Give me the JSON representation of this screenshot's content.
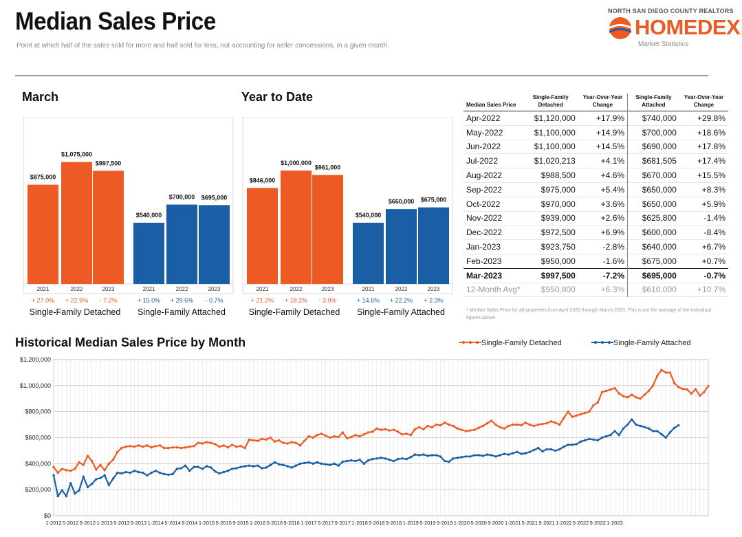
{
  "header": {
    "title": "Median Sales Price",
    "subtitle": "Point at which half of the sales sold for more and half sold for less, not accounting for seller concessions, in a given month.",
    "brand_top": "NORTH SAN DIEGO COUNTY REALTORS",
    "brand_name": "HOMEDEX",
    "brand_sub": "Market Statistics"
  },
  "colors": {
    "detached": "#ee5a24",
    "attached": "#1a5ea6",
    "accent_up": "#ee5a24",
    "accent_pos_attached": "#1a5ea6"
  },
  "chart_data": [
    {
      "type": "bar",
      "title": "March",
      "groups": [
        {
          "name": "Single-Family Detached",
          "categories": [
            "2021",
            "2022",
            "2023"
          ],
          "values": [
            875000,
            1075000,
            997500
          ],
          "labels": [
            "$875,000",
            "$1,075,000",
            "$997,500"
          ],
          "changes": [
            "+ 27.0%",
            "+ 22.9%",
            "- 7.2%"
          ]
        },
        {
          "name": "Single-Family Attached",
          "categories": [
            "2021",
            "2022",
            "2023"
          ],
          "values": [
            540000,
            700000,
            695000
          ],
          "labels": [
            "$540,000",
            "$700,000",
            "$695,000"
          ],
          "changes": [
            "+ 15.0%",
            "+ 29.6%",
            "- 0.7%"
          ]
        }
      ],
      "ylim": [
        0,
        1200000
      ]
    },
    {
      "type": "bar",
      "title": "Year to Date",
      "groups": [
        {
          "name": "Single-Family Detached",
          "categories": [
            "2021",
            "2022",
            "2023"
          ],
          "values": [
            846000,
            1000000,
            961000
          ],
          "labels": [
            "$846,000",
            "$1,000,000",
            "$961,000"
          ],
          "changes": [
            "+ 21.2%",
            "+ 18.2%",
            "- 3.9%"
          ]
        },
        {
          "name": "Single-Family Attached",
          "categories": [
            "2021",
            "2022",
            "2023"
          ],
          "values": [
            540000,
            660000,
            675000
          ],
          "labels": [
            "$540,000",
            "$660,000",
            "$675,000"
          ],
          "changes": [
            "+ 14.6%",
            "+ 22.2%",
            "+ 2.3%"
          ]
        }
      ],
      "ylim": [
        0,
        1200000
      ]
    },
    {
      "type": "table",
      "columns": [
        "Median Sales Price",
        "Single-Family Detached",
        "Year-Over-Year Change",
        "Single-Family Attached",
        "Year-Over-Year Change"
      ],
      "rows": [
        [
          "Apr-2022",
          "$1,120,000",
          "+17.9%",
          "$740,000",
          "+29.8%"
        ],
        [
          "May-2022",
          "$1,100,000",
          "+14.9%",
          "$700,000",
          "+18.6%"
        ],
        [
          "Jun-2022",
          "$1,100,000",
          "+14.5%",
          "$690,000",
          "+17.8%"
        ],
        [
          "Jul-2022",
          "$1,020,213",
          "+4.1%",
          "$681,505",
          "+17.4%"
        ],
        [
          "Aug-2022",
          "$988,500",
          "+4.6%",
          "$670,000",
          "+15.5%"
        ],
        [
          "Sep-2022",
          "$975,000",
          "+5.4%",
          "$650,000",
          "+8.3%"
        ],
        [
          "Oct-2022",
          "$970,000",
          "+3.6%",
          "$650,000",
          "+5.9%"
        ],
        [
          "Nov-2022",
          "$939,000",
          "+2.6%",
          "$625,800",
          "-1.4%"
        ],
        [
          "Dec-2022",
          "$972,500",
          "+6.9%",
          "$600,000",
          "-8.4%"
        ],
        [
          "Jan-2023",
          "$923,750",
          "-2.8%",
          "$640,000",
          "+6.7%"
        ],
        [
          "Feb-2023",
          "$950,000",
          "-1.6%",
          "$675,000",
          "+0.7%"
        ],
        [
          "Mar-2023",
          "$997,500",
          "-7.2%",
          "$695,000",
          "-0.7%"
        ]
      ],
      "avg_row": [
        "12-Month Avg*",
        "$950,800",
        "+6.3%",
        "$610,000",
        "+10.7%"
      ],
      "note": "* Median Sales Price for all properties from April 2022 through March 2023. This is not the average of the individual figures above."
    },
    {
      "type": "line",
      "title": "Historical Median Sales Price by Month",
      "ylim": [
        0,
        1200000
      ],
      "y_ticks": [
        0,
        200000,
        400000,
        600000,
        800000,
        1000000,
        1200000
      ],
      "y_tick_labels": [
        "$0",
        "$200,000",
        "$400,000",
        "$600,000",
        "$800,000",
        "$1,000,000",
        "$1,200,000"
      ],
      "x_tick_labels": [
        "1-2012",
        "5-2012",
        "9-2012",
        "1-2013",
        "5-2013",
        "9-2013",
        "1-2014",
        "5-2014",
        "9-2014",
        "1-2015",
        "5-2015",
        "9-2015",
        "1-2016",
        "5-2016",
        "9-2016",
        "1-2017",
        "5-2017",
        "9-2017",
        "1-2018",
        "5-2018",
        "9-2018",
        "1-2019",
        "5-2019",
        "9-2019",
        "1-2020",
        "5-2020",
        "9-2020",
        "1-2021",
        "5-2021",
        "9-2021",
        "1-2022",
        "5-2022",
        "9-2022",
        "1-2023"
      ],
      "x_start": "1-2012",
      "series": [
        {
          "name": "Single-Family Detached",
          "values": [
            375000,
            330000,
            360000,
            350000,
            345000,
            360000,
            410000,
            390000,
            460000,
            420000,
            355000,
            390000,
            350000,
            400000,
            430000,
            490000,
            520000,
            530000,
            535000,
            530000,
            540000,
            530000,
            540000,
            525000,
            535000,
            540000,
            520000,
            520000,
            525000,
            525000,
            520000,
            525000,
            530000,
            535000,
            560000,
            555000,
            565000,
            560000,
            550000,
            530000,
            540000,
            525000,
            545000,
            530000,
            535000,
            520000,
            585000,
            580000,
            575000,
            590000,
            585000,
            600000,
            570000,
            580000,
            560000,
            555000,
            565000,
            560000,
            540000,
            575000,
            610000,
            600000,
            620000,
            630000,
            615000,
            600000,
            610000,
            605000,
            640000,
            595000,
            605000,
            620000,
            610000,
            625000,
            640000,
            645000,
            670000,
            660000,
            665000,
            655000,
            660000,
            645000,
            625000,
            630000,
            620000,
            665000,
            680000,
            665000,
            690000,
            680000,
            700000,
            695000,
            715000,
            700000,
            690000,
            670000,
            660000,
            650000,
            655000,
            660000,
            675000,
            690000,
            710000,
            730000,
            700000,
            680000,
            670000,
            690000,
            700000,
            700000,
            695000,
            715000,
            700000,
            690000,
            700000,
            705000,
            710000,
            725000,
            715000,
            700000,
            750000,
            800000,
            760000,
            770000,
            780000,
            790000,
            800000,
            850000,
            870000,
            950000,
            960000,
            970000,
            980000,
            940000,
            920000,
            910000,
            930000,
            910000,
            900000,
            930000,
            960000,
            1000000,
            1075000,
            1120000,
            1100000,
            1100000,
            1020213,
            988500,
            975000,
            970000,
            939000,
            972500,
            923750,
            950000,
            997500
          ]
        },
        {
          "name": "Single-Family Attached",
          "values": [
            310000,
            150000,
            195000,
            150000,
            250000,
            170000,
            195000,
            300000,
            220000,
            245000,
            280000,
            290000,
            310000,
            235000,
            285000,
            330000,
            325000,
            335000,
            330000,
            345000,
            335000,
            330000,
            310000,
            330000,
            345000,
            330000,
            320000,
            315000,
            320000,
            360000,
            365000,
            385000,
            345000,
            375000,
            375000,
            360000,
            380000,
            370000,
            340000,
            325000,
            335000,
            345000,
            360000,
            365000,
            375000,
            380000,
            385000,
            380000,
            385000,
            365000,
            370000,
            390000,
            410000,
            395000,
            390000,
            380000,
            370000,
            385000,
            400000,
            405000,
            410000,
            400000,
            410000,
            400000,
            395000,
            390000,
            400000,
            385000,
            415000,
            420000,
            425000,
            420000,
            430000,
            400000,
            425000,
            435000,
            440000,
            445000,
            440000,
            430000,
            420000,
            435000,
            440000,
            435000,
            450000,
            470000,
            465000,
            470000,
            460000,
            465000,
            465000,
            455000,
            420000,
            415000,
            440000,
            445000,
            450000,
            455000,
            455000,
            465000,
            465000,
            460000,
            470000,
            465000,
            455000,
            465000,
            475000,
            470000,
            480000,
            490000,
            475000,
            480000,
            490000,
            505000,
            520000,
            495000,
            510000,
            510000,
            500000,
            510000,
            530000,
            545000,
            545000,
            550000,
            570000,
            580000,
            590000,
            585000,
            580000,
            600000,
            610000,
            620000,
            650000,
            620000,
            670000,
            700000,
            740000,
            700000,
            690000,
            681505,
            670000,
            650000,
            650000,
            625800,
            600000,
            640000,
            675000,
            695000
          ]
        }
      ]
    }
  ],
  "march": {
    "title": "March",
    "det_name": "Single-Family Detached",
    "att_name": "Single-Family Attached"
  },
  "ytd": {
    "title": "Year to Date",
    "det_name": "Single-Family Detached",
    "att_name": "Single-Family Attached"
  },
  "historical": {
    "title": "Historical Median Sales Price by Month",
    "legend_det": "Single-Family Detached",
    "legend_att": "Single-Family Attached"
  }
}
